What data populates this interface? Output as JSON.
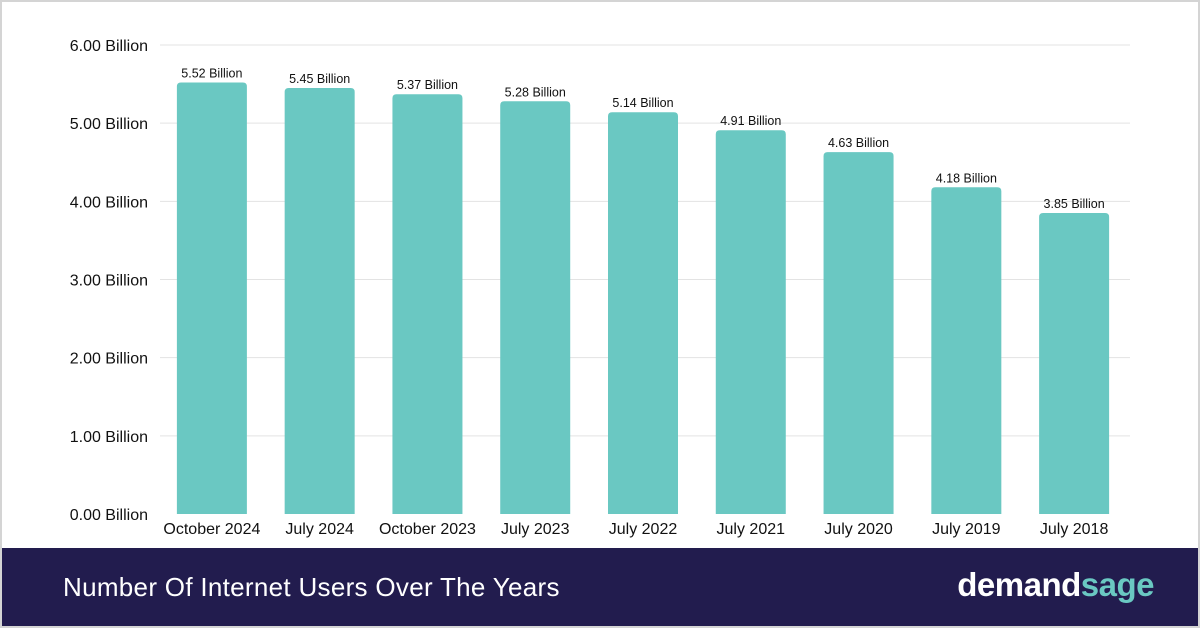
{
  "chart_data": {
    "type": "bar",
    "title": "Number Of Internet Users Over The Years",
    "categories": [
      "October 2024",
      "July 2024",
      "October 2023",
      "July 2023",
      "July 2022",
      "July 2021",
      "July 2020",
      "July 2019",
      "July 2018"
    ],
    "values": [
      5.52,
      5.45,
      5.37,
      5.28,
      5.14,
      4.91,
      4.63,
      4.18,
      3.85
    ],
    "value_labels": [
      "5.52 Billion",
      "5.45 Billion",
      "5.37 Billion",
      "5.28 Billion",
      "5.14 Billion",
      "4.91 Billion",
      "4.63 Billion",
      "4.18 Billion",
      "3.85 Billion"
    ],
    "y_ticks": [
      0,
      1,
      2,
      3,
      4,
      5,
      6
    ],
    "y_tick_labels": [
      "0.00 Billion",
      "1.00 Billion",
      "2.00 Billion",
      "3.00 Billion",
      "4.00 Billion",
      "5.00 Billion",
      "6.00 Billion"
    ],
    "ylim": [
      0,
      6
    ],
    "xlabel": "",
    "ylabel": "",
    "grid": true,
    "bar_color": "#6ac8c2"
  },
  "footer": {
    "title": "Number Of Internet Users Over The Years",
    "brand_part1": "demand",
    "brand_part2": "sage"
  },
  "colors": {
    "footer_bg": "#221c4e",
    "accent": "#6ac8c2"
  }
}
